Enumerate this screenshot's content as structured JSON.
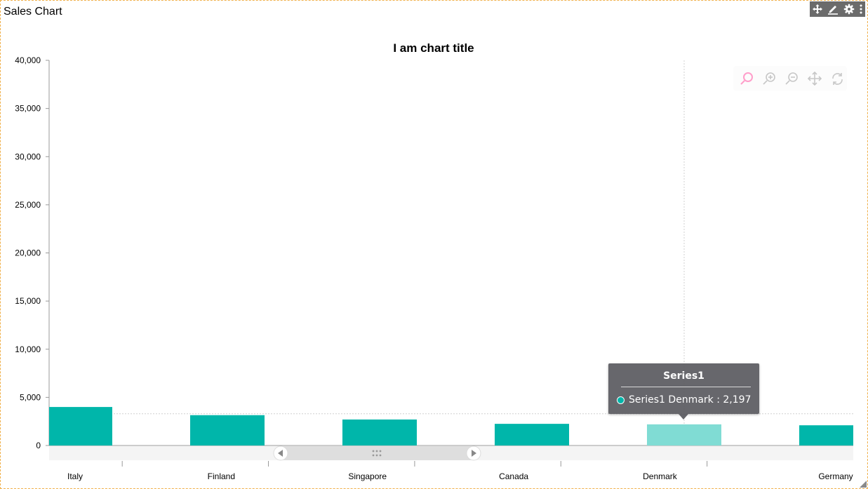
{
  "panel": {
    "title": "Sales Chart",
    "toolbar": [
      "move-icon",
      "edit-icon",
      "gear-icon",
      "more-vertical-icon"
    ]
  },
  "colors": {
    "bar": "#00b6aa",
    "bar_highlight": "#80dcd4",
    "axis": "#999999",
    "crosshair": "#d0d0d0"
  },
  "zoom_toolbar": {
    "icons": [
      "selection-zoom-icon",
      "zoom-in-icon",
      "zoom-out-icon",
      "pan-icon",
      "reset-icon"
    ]
  },
  "chart_data": {
    "type": "bar",
    "title": "I am chart title",
    "xlabel": "",
    "ylabel": "",
    "categories": [
      "Italy",
      "Finland",
      "Singapore",
      "Canada",
      "Denmark",
      "Germany"
    ],
    "series": [
      {
        "name": "Series1",
        "values": [
          4000,
          3150,
          2700,
          2250,
          2197,
          2100
        ]
      }
    ],
    "ylim": [
      0,
      40000
    ],
    "yticks": [
      "0",
      "5,000",
      "10,000",
      "15,000",
      "20,000",
      "25,000",
      "30,000",
      "35,000",
      "40,000"
    ],
    "ytick_values": [
      0,
      5000,
      10000,
      15000,
      20000,
      25000,
      30000,
      35000,
      40000
    ],
    "grid": false,
    "legend": "none",
    "highlighted_index": 4,
    "crosshair_y": 3300
  },
  "tooltip": {
    "title": "Series1",
    "text": "Series1 Denmark : 2,197"
  }
}
